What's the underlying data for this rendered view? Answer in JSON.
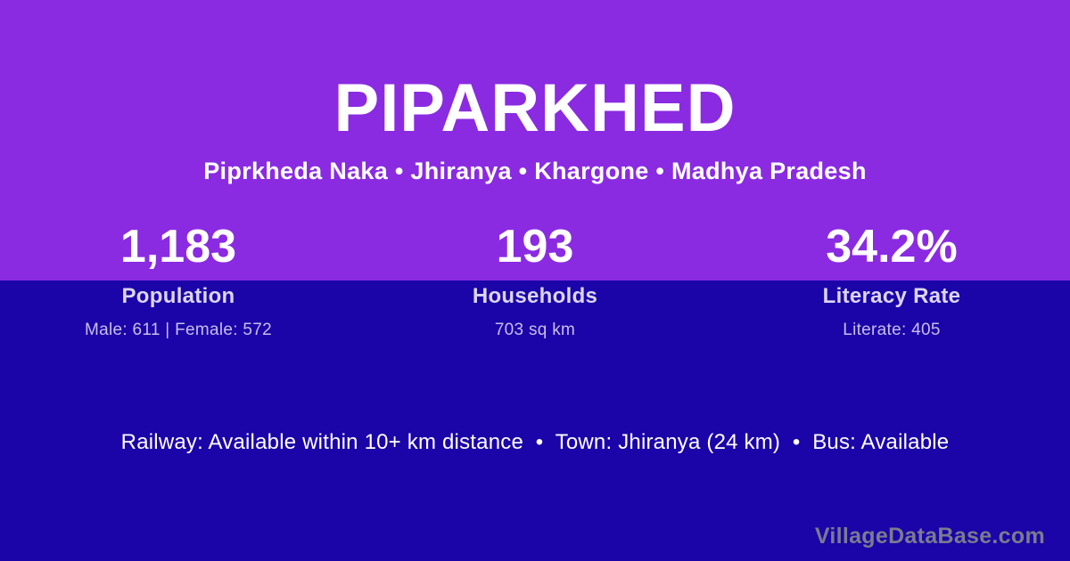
{
  "colors": {
    "hero_background": "#8a2be2",
    "lower_background": "#1b04a8",
    "primary_text": "#ffffff",
    "label_text": "#dcd6f2",
    "detail_text": "#c6bfe8",
    "watermark_text": "#7b7b8e"
  },
  "header": {
    "title": "PIPARKHED",
    "subtitle": "Piprkheda Naka • Jhiranya • Khargone • Madhya Pradesh"
  },
  "stats": {
    "items": [
      {
        "value": "1,183",
        "label": "Population",
        "detail": "Male: 611 | Female: 572"
      },
      {
        "value": "193",
        "label": "Households",
        "detail": "703 sq km"
      },
      {
        "value": "34.2%",
        "label": "Literacy Rate",
        "detail": "Literate: 405"
      }
    ]
  },
  "footer": {
    "info": "Railway: Available within 10+ km distance  •  Town: Jhiranya (24 km)  •  Bus: Available",
    "watermark": "VillageDataBase.com"
  }
}
